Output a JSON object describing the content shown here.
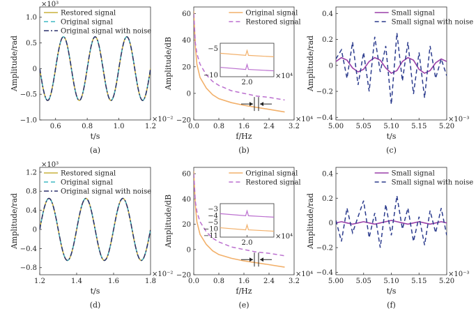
{
  "chart_data": [
    {
      "panel": "a",
      "caption": "(a)",
      "type": "line",
      "xlabel": "t/s",
      "ylabel": "Amplitude/rad",
      "x_multiplier": "×10⁻²",
      "y_multiplier": "×10³",
      "xlim": [
        0.5,
        1.2
      ],
      "ylim": [
        -1.0,
        1.2
      ],
      "xticks": [
        "0.6",
        "0.8",
        "1.0",
        "1.2"
      ],
      "yticks": [
        "−1.0",
        "−0.5",
        "0",
        "0.5",
        "1.0"
      ],
      "legend_position": "top-left",
      "series": [
        {
          "name": "Restored signal",
          "color": "#c8b23c",
          "style": "solid",
          "amplitude": 0.62,
          "period": 0.2,
          "peak_at": 0.65
        },
        {
          "name": "Original signal",
          "color": "#3fb8c4",
          "style": "dashed",
          "amplitude": 0.62,
          "period": 0.2,
          "peak_at": 0.65
        },
        {
          "name": "Original signal with noise",
          "color": "#2a2f6b",
          "style": "dashdot",
          "amplitude": 0.62,
          "period": 0.2,
          "peak_at": 0.65
        }
      ]
    },
    {
      "panel": "b",
      "caption": "(b)",
      "type": "line",
      "xlabel": "f/Hz",
      "ylabel": "Amplitude/dB",
      "x_multiplier": "×10⁴",
      "xlim": [
        0,
        3.2
      ],
      "ylim": [
        -20,
        65
      ],
      "xticks": [
        "0.0",
        "0.8",
        "1.6",
        "2.4",
        "3.2"
      ],
      "yticks": [
        "−20",
        "0",
        "20",
        "40",
        "60"
      ],
      "legend_position": "top-right",
      "series": [
        {
          "name": "Original signal",
          "color": "#f2b06a",
          "style": "solid",
          "x": [
            0.0,
            0.05,
            0.1,
            0.2,
            0.4,
            0.6,
            0.8,
            1.2,
            1.6,
            2.0,
            2.4,
            2.9
          ],
          "y": [
            62,
            35,
            22,
            12,
            4,
            -1,
            -4,
            -7,
            -9,
            -10.5,
            -12,
            -14
          ]
        },
        {
          "name": "Restored signal",
          "color": "#bb6fcf",
          "style": "dashed",
          "x": [
            0.0,
            0.05,
            0.1,
            0.2,
            0.4,
            0.6,
            0.8,
            1.2,
            1.6,
            2.0,
            2.4,
            2.9
          ],
          "y": [
            60,
            38,
            30,
            22,
            14,
            9,
            6,
            2,
            0,
            -2,
            -3,
            -5
          ]
        }
      ],
      "inset": {
        "xtick": "2.0",
        "yticks": [
          "−5",
          "−10"
        ],
        "x_multiplier": "×10⁴",
        "xlim": [
          1.7,
          2.3
        ],
        "ylim": [
          -12,
          -2
        ],
        "series": [
          {
            "color": "#f2b06a",
            "x": [
              1.7,
              2.3
            ],
            "y": [
              -10.5,
              -11.5
            ]
          },
          {
            "color": "#bb6fcf",
            "x": [
              1.7,
              2.3
            ],
            "y": [
              -4.5,
              -5.5
            ]
          }
        ]
      }
    },
    {
      "panel": "c",
      "caption": "(c)",
      "type": "line",
      "xlabel": "t/s",
      "ylabel": "Amplitude/rad",
      "x_multiplier": "×10⁻³",
      "xlim": [
        5.0,
        5.2
      ],
      "ylim": [
        -0.42,
        0.45
      ],
      "xticks": [
        "5.00",
        "5.05",
        "5.10",
        "5.15",
        "5.20"
      ],
      "yticks": [
        "−0.4",
        "−0.2",
        "0",
        "0.2",
        "0.4"
      ],
      "legend_position": "top-right",
      "series": [
        {
          "name": "Small signal",
          "color": "#9a3fa8",
          "style": "solid",
          "x": [
            5.0,
            5.01,
            5.02,
            5.03,
            5.04,
            5.05,
            5.06,
            5.07,
            5.08,
            5.09,
            5.1,
            5.11,
            5.12,
            5.13,
            5.14,
            5.15,
            5.16,
            5.17,
            5.18,
            5.19,
            5.2
          ],
          "y": [
            0.03,
            0.06,
            0.04,
            -0.02,
            -0.05,
            -0.03,
            0.03,
            0.06,
            0.04,
            -0.02,
            -0.06,
            -0.04,
            0.03,
            0.06,
            0.04,
            -0.03,
            -0.06,
            -0.04,
            0.02,
            0.05,
            0.03
          ]
        },
        {
          "name": "Small signal with noise",
          "color": "#2a3a8c",
          "style": "dashed",
          "x": [
            5.0,
            5.01,
            5.02,
            5.03,
            5.04,
            5.05,
            5.06,
            5.07,
            5.08,
            5.09,
            5.1,
            5.11,
            5.12,
            5.13,
            5.14,
            5.15,
            5.16,
            5.17,
            5.18,
            5.19,
            5.2
          ],
          "y": [
            0.05,
            0.12,
            -0.1,
            0.18,
            -0.15,
            0.1,
            -0.2,
            0.22,
            -0.05,
            0.15,
            -0.3,
            0.25,
            -0.12,
            0.18,
            -0.22,
            0.1,
            -0.25,
            0.15,
            -0.1,
            0.05,
            -0.08
          ]
        }
      ]
    },
    {
      "panel": "d",
      "caption": "(d)",
      "type": "line",
      "xlabel": "t/s",
      "ylabel": "Amplitude/rad",
      "x_multiplier": "×10⁻²",
      "y_multiplier": "×10³",
      "xlim": [
        1.2,
        1.8
      ],
      "ylim": [
        -0.95,
        1.3
      ],
      "xticks": [
        "1.2",
        "1.4",
        "1.6",
        "1.8"
      ],
      "yticks": [
        "−0.8",
        "−0.4",
        "0",
        "0.4",
        "0.8",
        "1.2"
      ],
      "legend_position": "top-left",
      "series": [
        {
          "name": "Restored signal",
          "color": "#c8b23c",
          "style": "solid",
          "amplitude": 0.65,
          "period": 0.2,
          "peak_at": 1.25
        },
        {
          "name": "Original signal",
          "color": "#3fb8c4",
          "style": "dashed",
          "amplitude": 0.65,
          "period": 0.2,
          "peak_at": 1.25
        },
        {
          "name": "Original signal with noise",
          "color": "#2a2f6b",
          "style": "dashdot",
          "amplitude": 0.65,
          "period": 0.2,
          "peak_at": 1.25
        }
      ]
    },
    {
      "panel": "e",
      "caption": "(e)",
      "type": "line",
      "xlabel": "f/Hz",
      "ylabel": "Amplitude/dB",
      "x_multiplier": "×10⁴",
      "xlim": [
        0,
        3.2
      ],
      "ylim": [
        -20,
        65
      ],
      "xticks": [
        "0.0",
        "0.8",
        "1.6",
        "2.4",
        "3.2"
      ],
      "yticks": [
        "−20",
        "0",
        "20",
        "40",
        "60"
      ],
      "legend_position": "top-right",
      "series": [
        {
          "name": "Original signal",
          "color": "#f2b06a",
          "style": "solid",
          "x": [
            0.0,
            0.05,
            0.1,
            0.2,
            0.4,
            0.6,
            0.8,
            1.2,
            1.6,
            2.0,
            2.4,
            2.9
          ],
          "y": [
            62,
            35,
            22,
            12,
            4,
            -1,
            -4,
            -7,
            -9,
            -10.5,
            -12,
            -14
          ]
        },
        {
          "name": "Restored signal",
          "color": "#bb6fcf",
          "style": "dashed",
          "x": [
            0.0,
            0.05,
            0.1,
            0.2,
            0.4,
            0.6,
            0.8,
            1.2,
            1.6,
            2.0,
            2.4,
            2.9
          ],
          "y": [
            60,
            38,
            30,
            22,
            14,
            9,
            6,
            2,
            0,
            -2,
            -3,
            -5
          ]
        }
      ],
      "inset": {
        "xtick": "2.0",
        "yticks_top": [
          "−3",
          "−4",
          "−5"
        ],
        "yticks_bottom": [
          "−10",
          "−11"
        ],
        "x_multiplier": "×10⁴",
        "series": [
          {
            "color": "#bb6fcf",
            "x": [
              1.7,
              2.3
            ],
            "y": [
              -4.0,
              -5.0
            ]
          },
          {
            "color": "#f2b06a",
            "x": [
              1.7,
              2.3
            ],
            "y": [
              -10.2,
              -11.0
            ]
          }
        ]
      }
    },
    {
      "panel": "f",
      "caption": "(f)",
      "type": "line",
      "xlabel": "t/s",
      "ylabel": "Amplitude/rad",
      "x_multiplier": "×10⁻³",
      "xlim": [
        5.0,
        5.2
      ],
      "ylim": [
        -0.42,
        0.45
      ],
      "xticks": [
        "5.00",
        "5.05",
        "5.10",
        "5.15",
        "5.20"
      ],
      "yticks": [
        "−0.4",
        "−0.2",
        "0",
        "0.2",
        "0.4"
      ],
      "legend_position": "top-right",
      "series": [
        {
          "name": "Small signal",
          "color": "#9a3fa8",
          "style": "solid",
          "x": [
            5.0,
            5.01,
            5.02,
            5.03,
            5.04,
            5.05,
            5.06,
            5.07,
            5.08,
            5.09,
            5.1,
            5.11,
            5.12,
            5.13,
            5.14,
            5.15,
            5.16,
            5.17,
            5.18,
            5.19,
            5.2
          ],
          "y": [
            0.0,
            0.01,
            0.0,
            -0.01,
            0.0,
            0.01,
            0.0,
            -0.01,
            0.0,
            0.01,
            0.02,
            0.01,
            0.0,
            -0.01,
            0.0,
            0.01,
            0.0,
            -0.01,
            0.0,
            0.01,
            0.0
          ]
        },
        {
          "name": "Small signal with noise",
          "color": "#2a3a8c",
          "style": "dashed",
          "x": [
            5.0,
            5.01,
            5.02,
            5.03,
            5.04,
            5.05,
            5.06,
            5.07,
            5.08,
            5.09,
            5.1,
            5.11,
            5.12,
            5.13,
            5.14,
            5.15,
            5.16,
            5.17,
            5.18,
            5.19,
            5.2
          ],
          "y": [
            0.02,
            -0.15,
            0.12,
            -0.08,
            0.05,
            0.18,
            -0.12,
            0.08,
            -0.2,
            0.15,
            -0.1,
            0.22,
            -0.05,
            0.12,
            -0.15,
            0.05,
            -0.18,
            0.1,
            -0.08,
            0.12,
            -0.1
          ]
        }
      ]
    }
  ]
}
